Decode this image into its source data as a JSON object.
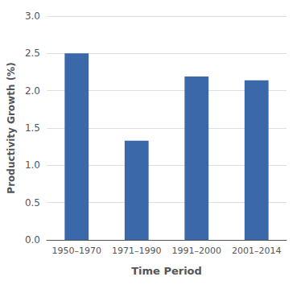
{
  "chart_data": {
    "type": "bar",
    "categories": [
      "1950–1970",
      "1971–1990",
      "1991–2000",
      "2001–2014"
    ],
    "values": [
      2.5,
      1.33,
      2.19,
      2.14
    ],
    "color": "#3A68A8",
    "xlabel": "Time Period",
    "ylabel": "Productivity Growth (%)",
    "ylim": [
      0,
      3.0
    ],
    "yticks": [
      {
        "value": 0.0,
        "label": "0.0"
      },
      0.5,
      {
        "value": 1.0,
        "label": "1.0"
      },
      {
        "value": 1.5,
        "label": "1.5"
      },
      {
        "value": 2.0,
        "label": "2.0"
      },
      2.5,
      {
        "value": 3.0,
        "label": "3.0"
      }
    ],
    "grid": true
  }
}
